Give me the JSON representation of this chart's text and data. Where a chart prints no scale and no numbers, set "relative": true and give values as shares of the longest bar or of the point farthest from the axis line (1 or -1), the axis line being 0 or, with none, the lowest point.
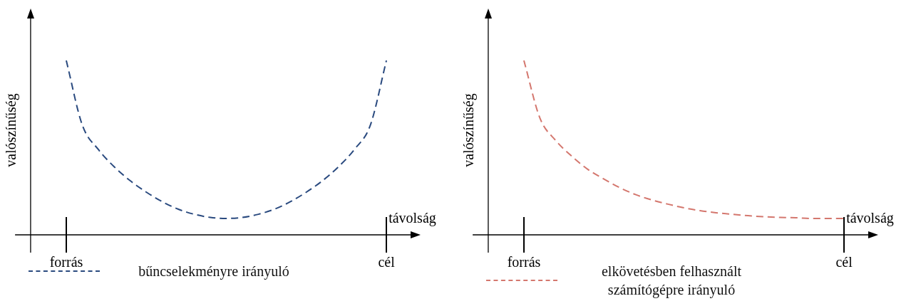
{
  "chart_data": [
    {
      "type": "line",
      "xlabel": "távolság",
      "ylabel": "valószínűség",
      "relative": true,
      "line_style": "dashed",
      "legend": "bottom left",
      "tick_labels": "x",
      "categories": [
        "forrás",
        null,
        null,
        null,
        null,
        null,
        null,
        null,
        null,
        null,
        null,
        null,
        null,
        null,
        null,
        null,
        null,
        null,
        null,
        null,
        "cél"
      ],
      "series": [
        {
          "name": "bűncselekményre irányuló",
          "color": "#2a4a7f",
          "values": [
            1,
            0.63,
            0.49,
            0.39,
            0.31,
            0.245,
            0.19,
            0.147,
            0.118,
            0.1,
            0.094,
            0.1,
            0.118,
            0.147,
            0.19,
            0.245,
            0.31,
            0.39,
            0.49,
            0.63,
            1
          ]
        }
      ]
    },
    {
      "type": "line",
      "xlabel": "távolság",
      "ylabel": "valószínűség",
      "relative": true,
      "line_style": "dashed",
      "legend": "bottom left",
      "tick_labels": "x",
      "categories": [
        "forrás",
        null,
        null,
        null,
        null,
        null,
        null,
        null,
        null,
        null,
        null,
        null,
        null,
        null,
        null,
        null,
        null,
        null,
        null,
        null,
        "cél"
      ],
      "series": [
        {
          "name": "elkövetésben felhasznált számítógépre irányuló",
          "color": "#d4776e",
          "values": [
            1,
            0.67,
            0.54,
            0.45,
            0.375,
            0.32,
            0.27,
            0.23,
            0.2,
            0.176,
            0.155,
            0.139,
            0.127,
            0.118,
            0.11,
            0.104,
            0.1,
            0.098,
            0.094,
            0.094,
            0.094
          ]
        }
      ]
    }
  ]
}
